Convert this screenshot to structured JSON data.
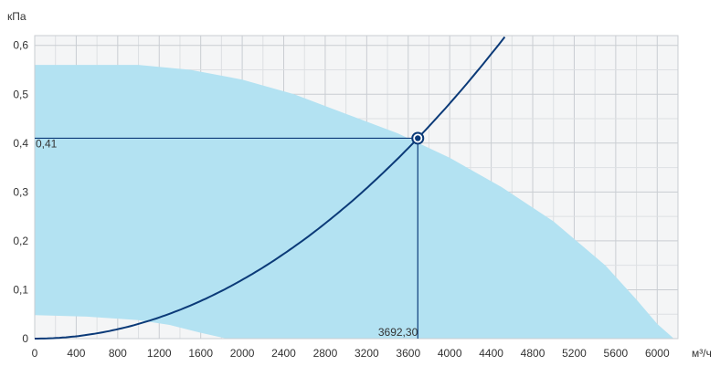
{
  "chart_data": {
    "type": "area",
    "xlabel": "м³/ч",
    "ylabel": "кПа",
    "xlim": [
      0,
      6200
    ],
    "ylim": [
      0,
      0.62
    ],
    "x_ticks": [
      "0",
      "400",
      "800",
      "1200",
      "1600",
      "2000",
      "2400",
      "2800",
      "3200",
      "3600",
      "4000",
      "4400",
      "4800",
      "5200",
      "5600",
      "6000"
    ],
    "y_ticks": [
      "0",
      "0,1",
      "0,2",
      "0,3",
      "0,4",
      "0,5",
      "0,6"
    ],
    "x_tick_values": [
      0,
      400,
      800,
      1200,
      1600,
      2000,
      2400,
      2800,
      3200,
      3600,
      4000,
      4400,
      4800,
      5200,
      5600,
      6000
    ],
    "y_tick_values": [
      0,
      0.1,
      0.2,
      0.3,
      0.4,
      0.5,
      0.6
    ],
    "grid": true,
    "operating_range": {
      "upper": [
        [
          0,
          0.56
        ],
        [
          600,
          0.56
        ],
        [
          1000,
          0.56
        ],
        [
          1500,
          0.55
        ],
        [
          2000,
          0.53
        ],
        [
          2500,
          0.5
        ],
        [
          3000,
          0.46
        ],
        [
          3500,
          0.42
        ],
        [
          4000,
          0.37
        ],
        [
          4500,
          0.31
        ],
        [
          5000,
          0.24
        ],
        [
          5500,
          0.15
        ],
        [
          5800,
          0.08
        ],
        [
          6000,
          0.03
        ],
        [
          6160,
          0
        ]
      ],
      "lower": [
        [
          0,
          0.048
        ],
        [
          500,
          0.045
        ],
        [
          1000,
          0.038
        ],
        [
          1300,
          0.028
        ],
        [
          1600,
          0.012
        ],
        [
          1850,
          0
        ]
      ],
      "color": "#b3e2f2"
    },
    "system_curve": {
      "k": 3.00748e-08,
      "x_start": 0,
      "x_end": 4530,
      "color": "#0b3a78"
    },
    "operating_point": {
      "x": 3692.3,
      "y": 0.41,
      "x_label": "3692,30",
      "y_label": "0,41",
      "marker_color": "#0b3a78"
    }
  }
}
